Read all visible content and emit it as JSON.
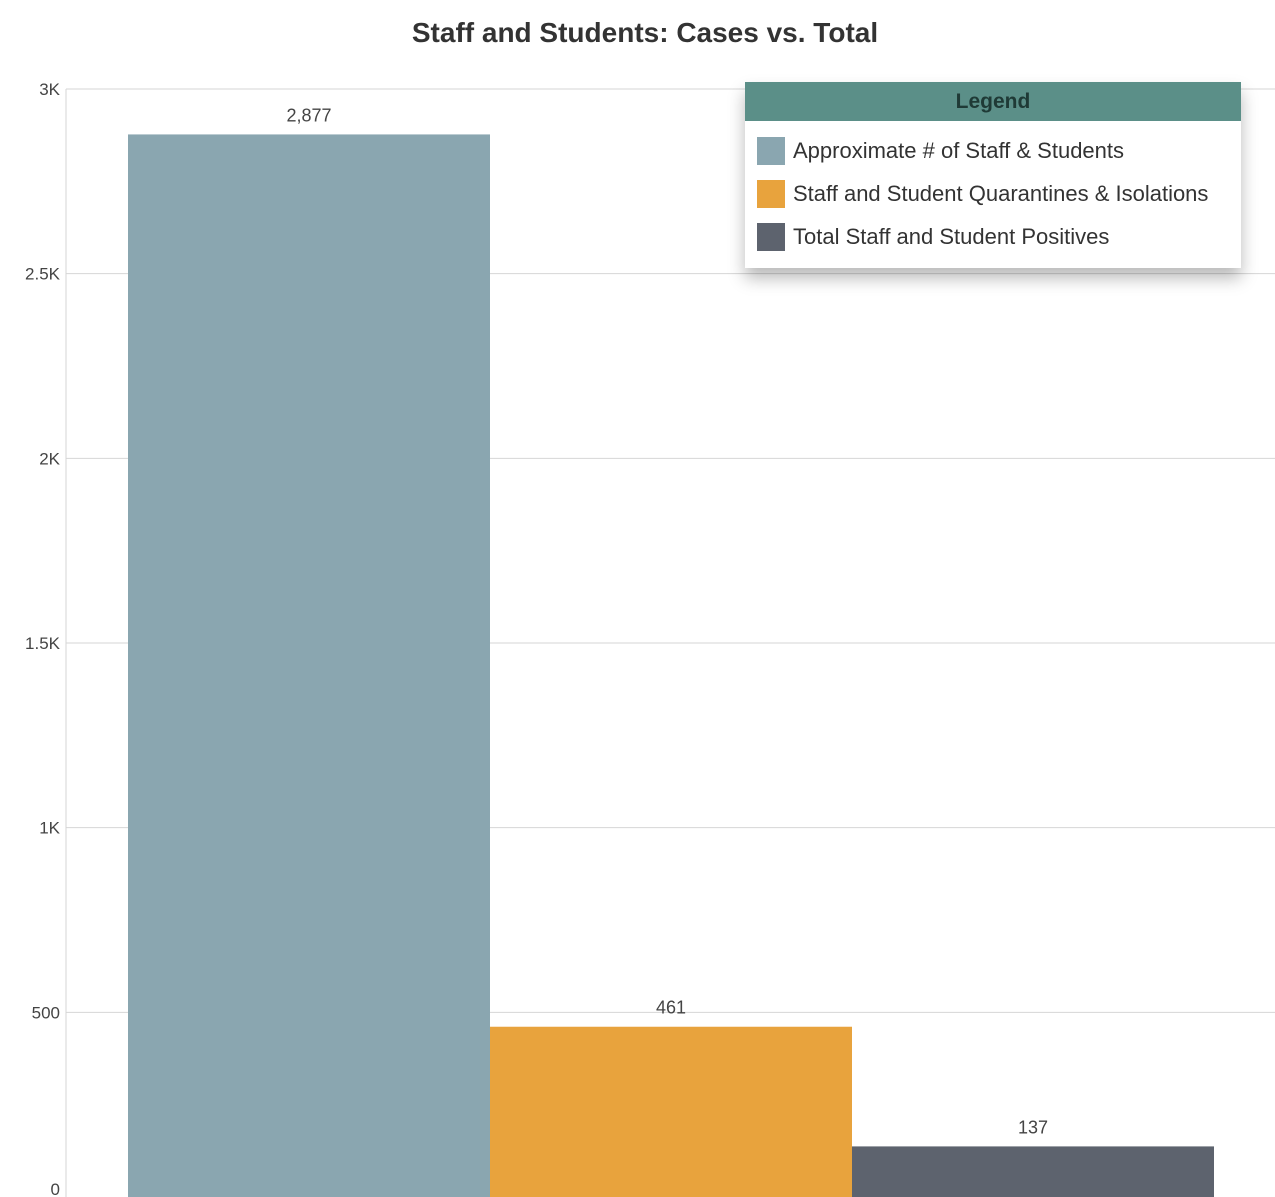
{
  "chart_data": {
    "type": "bar",
    "title": "Staff and Students: Cases vs. Total",
    "categories": [
      "Approximate # of Staff & Students",
      "Staff and Student Quarantines & Isolations",
      "Total Staff and Student Positives"
    ],
    "values": [
      2877,
      461,
      137
    ],
    "value_labels": [
      "2,877",
      "461",
      "137"
    ],
    "colors": [
      "#8aa6b0",
      "#e8a33d",
      "#5d636e"
    ],
    "ylim": [
      0,
      3000
    ],
    "yticks": [
      0,
      500,
      1000,
      1500,
      2000,
      2500,
      3000
    ],
    "ytick_labels": [
      "0",
      "500",
      "1K",
      "1.5K",
      "2K",
      "2.5K",
      "3K"
    ],
    "grid": true,
    "legend_title": "Legend",
    "legend_position": "top-right",
    "legend_header_color": "#5b8f88"
  }
}
